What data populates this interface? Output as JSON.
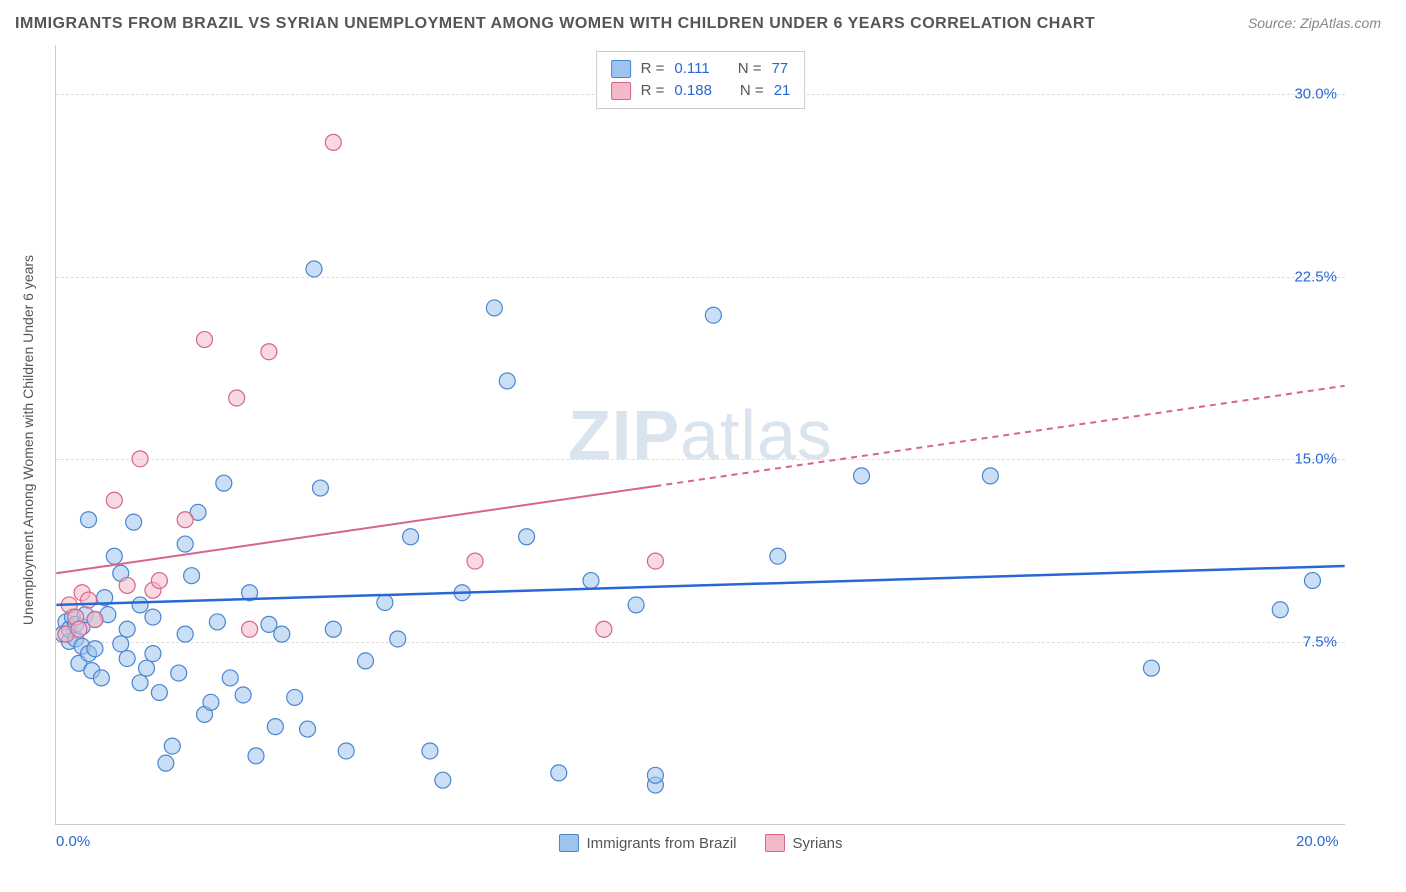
{
  "title": "IMMIGRANTS FROM BRAZIL VS SYRIAN UNEMPLOYMENT AMONG WOMEN WITH CHILDREN UNDER 6 YEARS CORRELATION CHART",
  "source_label": "Source: ZipAtlas.com",
  "ylabel": "Unemployment Among Women with Children Under 6 years",
  "watermark_bold": "ZIP",
  "watermark_light": "atlas",
  "chart": {
    "type": "scatter",
    "xlim": [
      0,
      20
    ],
    "ylim": [
      0,
      32
    ],
    "xtick_labels": [
      "0.0%",
      "20.0%"
    ],
    "xtick_positions": [
      0,
      20
    ],
    "ytick_labels": [
      "7.5%",
      "15.0%",
      "22.5%",
      "30.0%"
    ],
    "ytick_positions": [
      7.5,
      15.0,
      22.5,
      30.0
    ],
    "background_color": "#ffffff",
    "grid_color": "#dddddd",
    "grid_dash": "4,4",
    "marker_radius": 8,
    "marker_opacity": 0.55,
    "marker_stroke_width": 1.2,
    "series": [
      {
        "name": "Immigrants from Brazil",
        "color_fill": "#9ec3ed",
        "color_stroke": "#4a86d0",
        "r": 0.111,
        "n": 77,
        "trend": {
          "y_at_x0": 9.0,
          "y_at_xmax": 10.6,
          "stroke": "#2868d4",
          "width": 2.5,
          "dash": ""
        },
        "points": [
          [
            0.1,
            7.8
          ],
          [
            0.15,
            8.3
          ],
          [
            0.2,
            7.5
          ],
          [
            0.2,
            8.0
          ],
          [
            0.25,
            8.5
          ],
          [
            0.3,
            7.6
          ],
          [
            0.3,
            8.2
          ],
          [
            0.35,
            6.6
          ],
          [
            0.4,
            7.3
          ],
          [
            0.4,
            8.1
          ],
          [
            0.45,
            8.6
          ],
          [
            0.5,
            7.0
          ],
          [
            0.5,
            12.5
          ],
          [
            0.55,
            6.3
          ],
          [
            0.6,
            8.4
          ],
          [
            0.6,
            7.2
          ],
          [
            0.7,
            6.0
          ],
          [
            0.75,
            9.3
          ],
          [
            0.8,
            8.6
          ],
          [
            0.9,
            11.0
          ],
          [
            1.0,
            10.3
          ],
          [
            1.0,
            7.4
          ],
          [
            1.1,
            8.0
          ],
          [
            1.1,
            6.8
          ],
          [
            1.2,
            12.4
          ],
          [
            1.3,
            9.0
          ],
          [
            1.3,
            5.8
          ],
          [
            1.4,
            6.4
          ],
          [
            1.5,
            8.5
          ],
          [
            1.5,
            7.0
          ],
          [
            1.6,
            5.4
          ],
          [
            1.7,
            2.5
          ],
          [
            1.8,
            3.2
          ],
          [
            1.9,
            6.2
          ],
          [
            2.0,
            11.5
          ],
          [
            2.0,
            7.8
          ],
          [
            2.1,
            10.2
          ],
          [
            2.2,
            12.8
          ],
          [
            2.3,
            4.5
          ],
          [
            2.4,
            5.0
          ],
          [
            2.5,
            8.3
          ],
          [
            2.6,
            14.0
          ],
          [
            2.7,
            6.0
          ],
          [
            2.9,
            5.3
          ],
          [
            3.0,
            9.5
          ],
          [
            3.1,
            2.8
          ],
          [
            3.3,
            8.2
          ],
          [
            3.4,
            4.0
          ],
          [
            3.5,
            7.8
          ],
          [
            3.7,
            5.2
          ],
          [
            3.9,
            3.9
          ],
          [
            4.0,
            22.8
          ],
          [
            4.1,
            13.8
          ],
          [
            4.3,
            8.0
          ],
          [
            4.5,
            3.0
          ],
          [
            4.8,
            6.7
          ],
          [
            5.1,
            9.1
          ],
          [
            5.3,
            7.6
          ],
          [
            5.5,
            11.8
          ],
          [
            5.8,
            3.0
          ],
          [
            6.0,
            1.8
          ],
          [
            6.3,
            9.5
          ],
          [
            6.8,
            21.2
          ],
          [
            7.0,
            18.2
          ],
          [
            7.3,
            11.8
          ],
          [
            7.8,
            2.1
          ],
          [
            8.3,
            10.0
          ],
          [
            9.0,
            9.0
          ],
          [
            9.3,
            1.6
          ],
          [
            9.3,
            2.0
          ],
          [
            10.2,
            20.9
          ],
          [
            11.2,
            11.0
          ],
          [
            12.5,
            14.3
          ],
          [
            14.5,
            14.3
          ],
          [
            17.0,
            6.4
          ],
          [
            19.0,
            8.8
          ],
          [
            19.5,
            10.0
          ]
        ]
      },
      {
        "name": "Syrians",
        "color_fill": "#f3b9c8",
        "color_stroke": "#d66587",
        "r": 0.188,
        "n": 21,
        "trend": {
          "y_at_x0": 10.3,
          "y_at_xmax": 18.0,
          "stroke": "#d66587",
          "width": 2,
          "solid_until_x": 9.3,
          "dash_after": "6,5"
        },
        "points": [
          [
            0.15,
            7.8
          ],
          [
            0.2,
            9.0
          ],
          [
            0.3,
            8.5
          ],
          [
            0.35,
            8.0
          ],
          [
            0.4,
            9.5
          ],
          [
            0.5,
            9.2
          ],
          [
            0.6,
            8.4
          ],
          [
            0.9,
            13.3
          ],
          [
            1.1,
            9.8
          ],
          [
            1.3,
            15.0
          ],
          [
            1.5,
            9.6
          ],
          [
            1.6,
            10.0
          ],
          [
            2.0,
            12.5
          ],
          [
            2.3,
            19.9
          ],
          [
            2.8,
            17.5
          ],
          [
            3.0,
            8.0
          ],
          [
            3.3,
            19.4
          ],
          [
            4.3,
            28.0
          ],
          [
            6.5,
            10.8
          ],
          [
            8.5,
            8.0
          ],
          [
            9.3,
            10.8
          ]
        ]
      }
    ]
  },
  "legend_top": {
    "r_label": "R  =",
    "n_label": "N  ="
  },
  "legend_bottom": {
    "items": [
      "Immigrants from Brazil",
      "Syrians"
    ]
  }
}
